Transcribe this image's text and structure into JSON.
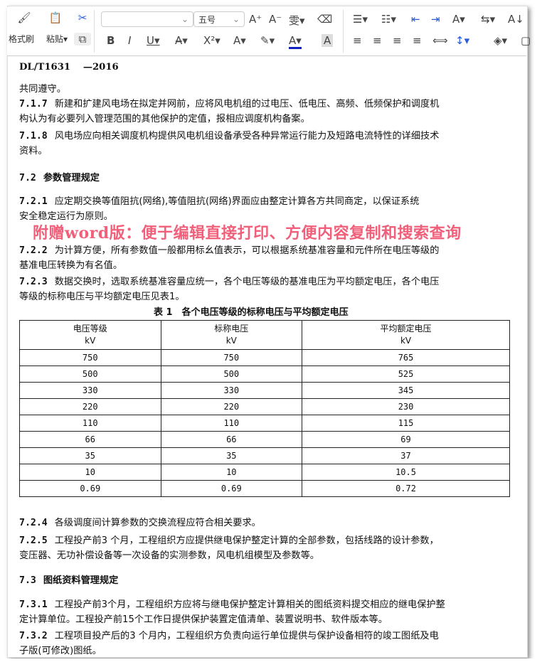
{
  "toolbar": {
    "format_painter": "格式刷",
    "paste": "粘贴",
    "font_size": "五号",
    "font_name": ""
  },
  "doc": {
    "header": "DL/T1631　 —2016",
    "lines": [
      "共同遵守。",
      {
        "num": "7.1.7",
        "text": "新建和扩建风电场在拟定并网前，应将风电机组的过电压、低电压、高频、低频保护和调度机"
      },
      "构认为有必要列入管理范围的其他保护的定值，报相应调度机构备案。",
      {
        "num": "7.1.8",
        "text": "风电场应向相关调度机构提供风电机组设备承受各种异常运行能力及短路电流特性的详细技术"
      },
      "资料。",
      {
        "num": "7.2",
        "text": "参数管理规定"
      },
      {
        "num": "7.2.1",
        "text": "应定期交换等值阻抗(网络),等值阻抗(网络)界面应由整定计算各方共同商定，以保证系统"
      },
      "安全稳定运行为原则。",
      {
        "num": "7.2.2",
        "text": "为计算方便，所有参数值一般都用标幺值表示，可以根据系统基准容量和元件所在电压等级的"
      },
      "基准电压转换为有名值。",
      {
        "num": "7.2.3",
        "text": "数据交换时，选取系统基准容量应统一，各个电压等级的基准电压为平均额定电压，各个电压"
      },
      "等级的标称电压与平均额定电压见表1。"
    ],
    "table_title": "表 1　各个电压等级的标称电压与平均额定电压",
    "table": {
      "headers": [
        [
          "电压等级",
          "kV"
        ],
        [
          "标称电压",
          "kV"
        ],
        [
          "平均额定电压",
          "kV"
        ]
      ],
      "rows": [
        [
          "750",
          "750",
          "765"
        ],
        [
          "500",
          "500",
          "525"
        ],
        [
          "330",
          "330",
          "345"
        ],
        [
          "220",
          "220",
          "230"
        ],
        [
          "110",
          "110",
          "115"
        ],
        [
          "66",
          "66",
          "69"
        ],
        [
          "35",
          "35",
          "37"
        ],
        [
          "10",
          "10",
          "10.5"
        ],
        [
          "0.69",
          "0.69",
          "0.72"
        ]
      ]
    },
    "lines2": [
      {
        "num": "7.2.4",
        "text": "各级调度间计算参数的交换流程应符合相关要求。"
      },
      {
        "num": "7.2.5",
        "text": "工程投产前3 个月，工程组织方应提供继电保护整定计算的全部参数，包括线路的设计参数，"
      },
      "变压器、无功补偿设备等一次设备的实测参数，风电机组模型及参数等。",
      {
        "num": "7.3",
        "text": "图纸资料管理规定"
      },
      {
        "num": "7.3.1",
        "text": "工程投产前3个月，工程组织方应将与继电保护整定计算相关的图纸资料提交相应的继电保护整"
      },
      "定计算单位。工程投产前15个工作日提供保护装置定值清单、装置说明书、软件版本等。",
      {
        "num": "7.3.2",
        "text": "工程项目投产后的3 个月内，工程组织方负责向运行单位提供与保护设备相符的竣工图纸及电"
      },
      "子版(可修改)图纸。"
    ]
  },
  "watermark": "附赠word版：便于编辑直接打印、方便内容复制和搜索查询"
}
